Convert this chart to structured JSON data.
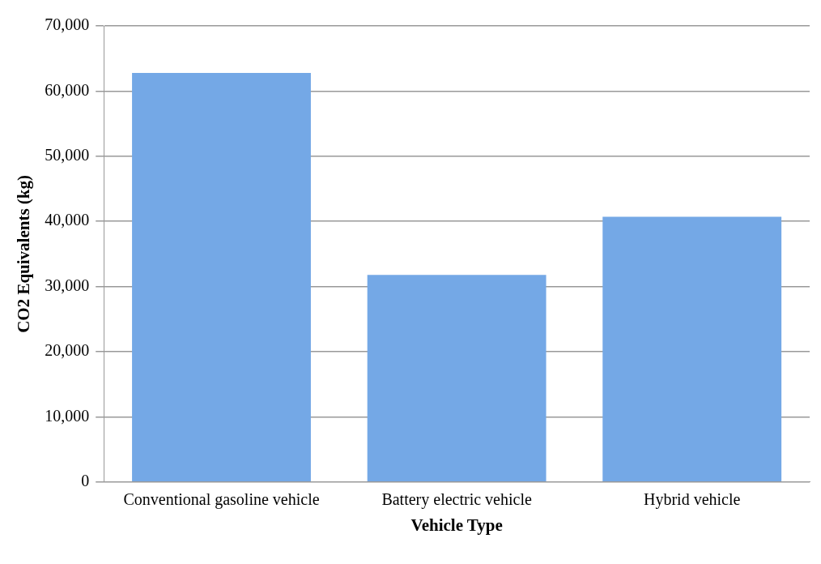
{
  "chart_data": {
    "type": "bar",
    "xlabel": "Vehicle Type",
    "ylabel": "CO2 Equivalents (kg)",
    "categories": [
      "Conventional gasoline vehicle",
      "Battery electric vehicle",
      "Hybrid vehicle"
    ],
    "values": [
      62800,
      31800,
      40700
    ],
    "color": "#74a8e6",
    "ylim": [
      0,
      70000
    ],
    "yticks": [
      {
        "value": 0,
        "label": "0"
      },
      {
        "value": 10000,
        "label": "10,000"
      },
      {
        "value": 20000,
        "label": "20,000"
      },
      {
        "value": 30000,
        "label": "30,000"
      },
      {
        "value": 40000,
        "label": "40,000"
      },
      {
        "value": 50000,
        "label": "50,000"
      },
      {
        "value": 60000,
        "label": "60,000"
      },
      {
        "value": 70000,
        "label": "70,000"
      }
    ],
    "grid": "y",
    "legend": false
  }
}
